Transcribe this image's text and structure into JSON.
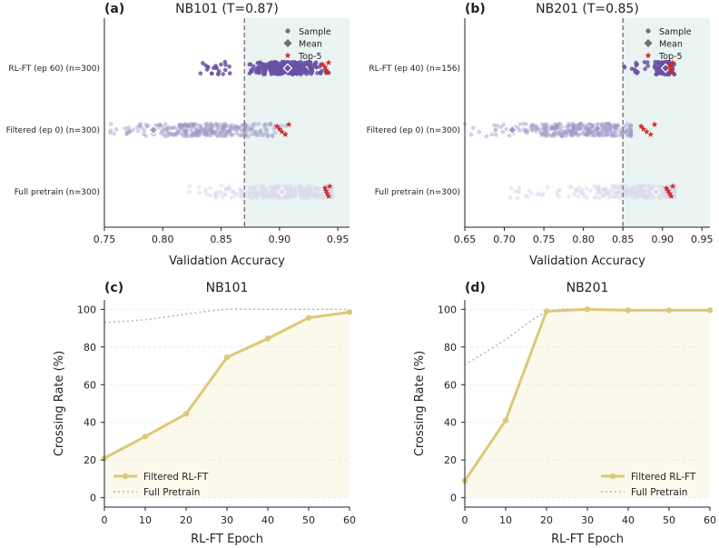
{
  "colors": {
    "threshold_shade": "#eaf4f3",
    "rl_ft": "#6a51a3",
    "filtered": "#9e9ac8",
    "full_pretrain": "#dadaeb",
    "top5": "#d62728",
    "threshold_line": "#808080",
    "crossing_line": "#dcc977",
    "crossing_fill": "#fbf8ec",
    "full_pretrain_line": "#b9b2b4",
    "legend_marker": "#707070"
  },
  "chart_data": [
    {
      "id": "a",
      "type": "scatter",
      "panel_label": "(a)",
      "title": "NB101 (T=0.87)",
      "xlabel": "Validation Accuracy",
      "xlim": [
        0.75,
        0.96
      ],
      "xticks": [
        0.75,
        0.8,
        0.85,
        0.9,
        0.95
      ],
      "xtick_labels": [
        "0.75",
        "0.80",
        "0.85",
        "0.90",
        "0.95"
      ],
      "threshold": 0.87,
      "legend": [
        "Sample",
        "Mean",
        "Top-5"
      ],
      "rows": [
        {
          "label": "RL-FT (ep 60) (n=300)",
          "color_key": "rl_ft",
          "alpha": 0.85,
          "range": [
            0.885,
            0.945
          ],
          "center": 0.905,
          "tail_lo": 0.83,
          "mean": 0.907,
          "top5": [
            0.937,
            0.939,
            0.94,
            0.941,
            0.942
          ],
          "n_draw": 300
        },
        {
          "label": "Filtered (ep 0) (n=300)",
          "color_key": "filtered",
          "alpha": 0.45,
          "range": [
            0.755,
            0.905
          ],
          "center": 0.84,
          "tail_lo": 0.755,
          "mean": 0.792,
          "top5": [
            0.898,
            0.9,
            0.902,
            0.905,
            0.908
          ],
          "n_draw": 300
        },
        {
          "label": "Full pretrain (n=300)",
          "color_key": "full_pretrain",
          "alpha": 0.55,
          "range": [
            0.82,
            0.945
          ],
          "center": 0.91,
          "tail_lo": 0.82,
          "mean": 0.902,
          "top5": [
            0.939,
            0.94,
            0.941,
            0.942,
            0.943
          ],
          "n_draw": 300
        }
      ]
    },
    {
      "id": "b",
      "type": "scatter",
      "panel_label": "(b)",
      "title": "NB201 (T=0.85)",
      "xlabel": "Validation Accuracy",
      "xlim": [
        0.65,
        0.96
      ],
      "xticks": [
        0.65,
        0.7,
        0.75,
        0.8,
        0.85,
        0.9,
        0.95
      ],
      "xtick_labels": [
        "0.65",
        "0.70",
        "0.75",
        "0.80",
        "0.85",
        "0.90",
        "0.95"
      ],
      "threshold": 0.85,
      "legend": [
        "Sample",
        "Mean",
        "Top-5"
      ],
      "rows": [
        {
          "label": "RL-FT (ep 40) (n=156)",
          "color_key": "rl_ft",
          "alpha": 0.85,
          "range": [
            0.885,
            0.915
          ],
          "center": 0.902,
          "tail_lo": 0.85,
          "mean": 0.904,
          "top5": [
            0.909,
            0.91,
            0.911,
            0.912,
            0.913
          ],
          "n_draw": 156
        },
        {
          "label": "Filtered (ep 0) (n=300)",
          "color_key": "filtered",
          "alpha": 0.45,
          "range": [
            0.65,
            0.86
          ],
          "center": 0.8,
          "tail_lo": 0.65,
          "mean": 0.71,
          "top5": [
            0.873,
            0.876,
            0.88,
            0.885,
            0.89
          ],
          "n_draw": 300
        },
        {
          "label": "Full pretrain (n=300)",
          "color_key": "full_pretrain",
          "alpha": 0.55,
          "range": [
            0.7,
            0.915
          ],
          "center": 0.88,
          "tail_lo": 0.7,
          "mean": 0.892,
          "top5": [
            0.905,
            0.907,
            0.909,
            0.911,
            0.913
          ],
          "n_draw": 300
        }
      ]
    },
    {
      "id": "c",
      "type": "line",
      "panel_label": "(c)",
      "title": "NB101",
      "xlabel": "RL-FT Epoch",
      "ylabel": "Crossing Rate (%)",
      "xlim": [
        0,
        60
      ],
      "ylim": [
        -5,
        105
      ],
      "xticks": [
        0,
        10,
        20,
        30,
        40,
        50,
        60
      ],
      "yticks": [
        0,
        20,
        40,
        60,
        80,
        100
      ],
      "legend_position": "bottom-left",
      "series": [
        {
          "name": "Filtered RL-FT",
          "style": "solid",
          "x": [
            0,
            10,
            20,
            30,
            40,
            50,
            60
          ],
          "values": [
            21,
            32.5,
            44.5,
            74.5,
            84.5,
            95.5,
            98.5
          ]
        },
        {
          "name": "Full Pretrain",
          "style": "dotted",
          "x": [
            0,
            10,
            20,
            30,
            40,
            50,
            60
          ],
          "values": [
            93,
            94.5,
            97.5,
            100,
            100,
            100,
            100
          ]
        }
      ]
    },
    {
      "id": "d",
      "type": "line",
      "panel_label": "(d)",
      "title": "NB201",
      "xlabel": "RL-FT Epoch",
      "ylabel": "Crossing Rate (%)",
      "xlim": [
        0,
        60
      ],
      "ylim": [
        -5,
        105
      ],
      "xticks": [
        0,
        10,
        20,
        30,
        40,
        50,
        60
      ],
      "yticks": [
        0,
        20,
        40,
        60,
        80,
        100
      ],
      "legend_position": "bottom-right",
      "series": [
        {
          "name": "Filtered RL-FT",
          "style": "solid",
          "x": [
            0,
            10,
            20,
            30,
            40,
            50,
            60
          ],
          "values": [
            9,
            41,
            99,
            100,
            99.5,
            99.5,
            99.5
          ]
        },
        {
          "name": "Full Pretrain",
          "style": "dotted",
          "x": [
            0,
            10,
            20,
            30,
            40,
            50,
            60
          ],
          "values": [
            70.5,
            84,
            98.5,
            100,
            99.5,
            99.5,
            99.5
          ]
        }
      ]
    }
  ]
}
